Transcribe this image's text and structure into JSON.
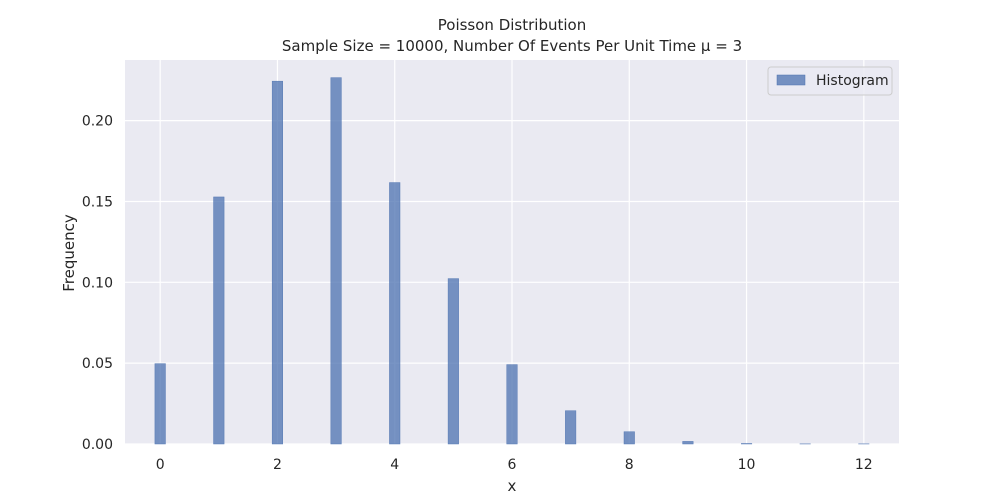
{
  "chart_data": {
    "type": "bar",
    "title": "Poisson Distribution",
    "subtitle": "Sample Size = 10000, Number Of Events Per Unit Time μ = 3",
    "xlabel": "x",
    "ylabel": "Frequency",
    "xlim": [
      -0.6,
      12.6
    ],
    "ylim": [
      0,
      0.2375
    ],
    "x_ticks": [
      0,
      2,
      4,
      6,
      8,
      10,
      12
    ],
    "y_ticks": [
      0.0,
      0.05,
      0.1,
      0.15,
      0.2
    ],
    "y_tick_labels": [
      "0.00",
      "0.05",
      "0.10",
      "0.15",
      "0.20"
    ],
    "x_tick_labels": [
      "0",
      "2",
      "4",
      "6",
      "8",
      "10",
      "12"
    ],
    "grid": true,
    "legend_position": "top-right",
    "series": [
      {
        "name": "Histogram",
        "color": "#4c72b0",
        "bar_width": 0.18,
        "x": [
          0,
          1,
          2,
          3,
          4,
          5,
          6,
          7,
          8,
          9,
          10,
          11,
          12
        ],
        "values": [
          0.0497,
          0.1528,
          0.2244,
          0.2266,
          0.1617,
          0.1023,
          0.0491,
          0.0206,
          0.0076,
          0.0016,
          0.0003,
          0.0001,
          0.0001
        ]
      }
    ],
    "colors": {
      "background": "#eaeaf2",
      "grid": "#ffffff",
      "bar": "#4c72b0"
    }
  }
}
